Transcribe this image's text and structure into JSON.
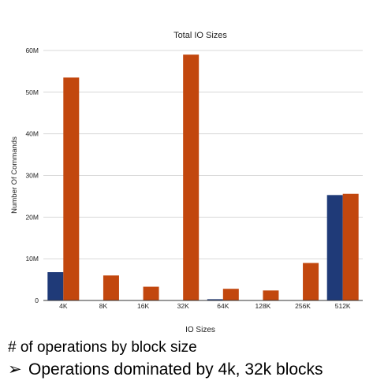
{
  "chart_data": {
    "type": "bar",
    "title": "Total IO Sizes",
    "xlabel": "IO Sizes",
    "ylabel": "Number Of Commands",
    "categories": [
      "4K",
      "8K",
      "16K",
      "32K",
      "64K",
      "128K",
      "256K",
      "512K"
    ],
    "series": [
      {
        "color": "#1f3a78",
        "values": [
          6.8,
          0,
          0,
          0,
          0.3,
          0,
          0,
          25.3
        ]
      },
      {
        "color": "#c2470e",
        "values": [
          53.5,
          6.0,
          3.3,
          59.0,
          2.8,
          2.4,
          9.0,
          25.6
        ]
      }
    ],
    "ylim": [
      0,
      60
    ],
    "yticks": [
      0,
      10,
      20,
      30,
      40,
      50,
      60
    ],
    "ytick_labels": [
      "0",
      "10M",
      "20M",
      "30M",
      "40M",
      "50M",
      "60M"
    ],
    "grid": true,
    "legend": "none"
  },
  "captions": {
    "line1": "# of operations by block size",
    "bullet": "➢",
    "line2": "Operations dominated by 4k, 32k blocks"
  }
}
